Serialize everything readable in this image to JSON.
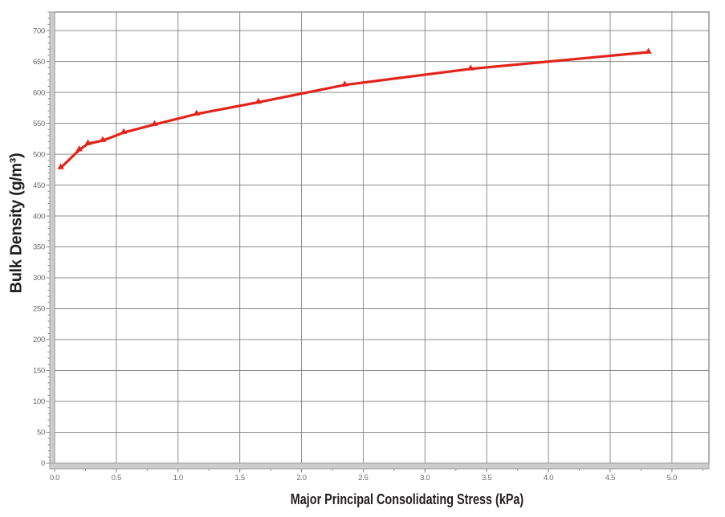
{
  "chart_data": {
    "type": "line",
    "title": "",
    "xlabel": "Major Principal Consolidating Stress (kPa)",
    "ylabel": "Bulk Density (g/m³)",
    "xlim": [
      0,
      5.3
    ],
    "ylim": [
      0,
      730
    ],
    "grid": true,
    "legend": "none",
    "x_ticks": {
      "values": [
        0,
        0.5,
        1.0,
        1.5,
        2.0,
        2.5,
        3.0,
        3.5,
        4.0,
        4.5,
        5.0
      ],
      "labels": [
        "0.0",
        "0.5",
        "1.0",
        "1.5",
        "2.0",
        "2.5",
        "3.0",
        "3.5",
        "4.0",
        "4.5",
        "5.0"
      ]
    },
    "y_ticks": {
      "values": [
        0,
        50,
        100,
        150,
        200,
        250,
        300,
        350,
        400,
        450,
        500,
        550,
        600,
        650,
        700
      ],
      "labels": [
        "0",
        "50",
        "100",
        "150",
        "200",
        "250",
        "300",
        "350",
        "400",
        "450",
        "500",
        "550",
        "600",
        "650",
        "700"
      ]
    },
    "x_minor_step": 0.25,
    "y_minor_step": 10,
    "series": [
      {
        "name": "bulk-density-curve",
        "marker": "triangle",
        "color": "#e2231a",
        "points": [
          [
            0.05,
            478
          ],
          [
            0.2,
            507
          ],
          [
            0.27,
            517
          ],
          [
            0.39,
            522
          ],
          [
            0.56,
            535
          ],
          [
            0.81,
            548
          ],
          [
            1.15,
            565
          ],
          [
            1.65,
            584
          ],
          [
            2.35,
            612
          ],
          [
            3.37,
            638
          ],
          [
            4.81,
            665
          ]
        ]
      }
    ],
    "colors": {
      "line": "#e2231a",
      "grid": "#8c8c8c",
      "frame": "#7d7d7d",
      "band": "#cccccc",
      "band_edge": "#9e9e9e",
      "tick": "#8c8c8c",
      "tick_label": "#6a6a6a",
      "title": "#231f20"
    }
  }
}
